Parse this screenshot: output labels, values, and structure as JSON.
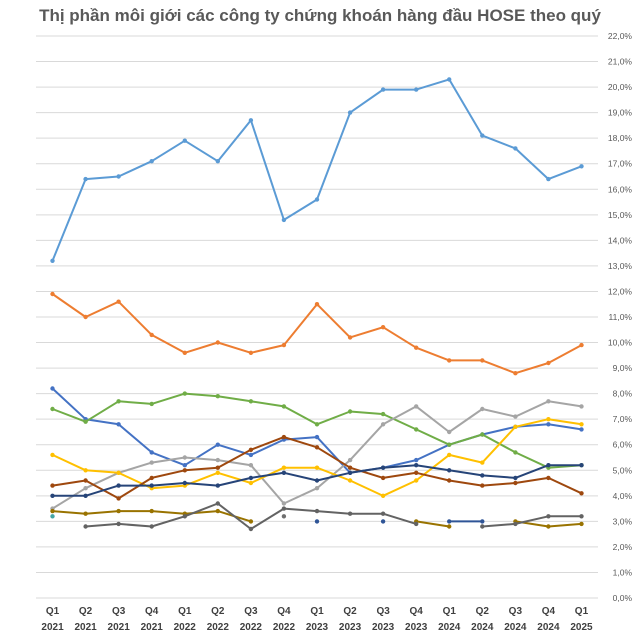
{
  "chart_data": {
    "type": "line",
    "title": "Thị phần môi giới các công ty chứng khoán hàng đầu HOSE theo quý",
    "xlabel": "",
    "ylabel": "",
    "ylim": [
      0,
      22
    ],
    "y_tick_step": 1,
    "y_tick_format": "percent_1dp_comma",
    "grid": true,
    "legend": "none",
    "categories": [
      [
        "Q1",
        "2021"
      ],
      [
        "Q2",
        "2021"
      ],
      [
        "Q3",
        "2021"
      ],
      [
        "Q4",
        "2021"
      ],
      [
        "Q1",
        "2022"
      ],
      [
        "Q2",
        "2022"
      ],
      [
        "Q3",
        "2022"
      ],
      [
        "Q4",
        "2022"
      ],
      [
        "Q1",
        "2023"
      ],
      [
        "Q2",
        "2023"
      ],
      [
        "Q3",
        "2023"
      ],
      [
        "Q4",
        "2023"
      ],
      [
        "Q1",
        "2024"
      ],
      [
        "Q2",
        "2024"
      ],
      [
        "Q3",
        "2024"
      ],
      [
        "Q4",
        "2024"
      ],
      [
        "Q1",
        "2025"
      ]
    ],
    "series": [
      {
        "color": "#5B9BD5",
        "values": [
          13.2,
          16.4,
          16.5,
          17.1,
          17.9,
          17.1,
          18.7,
          14.8,
          15.6,
          19.0,
          19.9,
          19.9,
          20.3,
          18.1,
          17.6,
          16.4,
          16.9
        ]
      },
      {
        "color": "#ED7D31",
        "values": [
          11.9,
          11.0,
          11.6,
          10.3,
          9.6,
          10.0,
          9.6,
          9.9,
          11.5,
          10.2,
          10.6,
          9.8,
          9.3,
          9.3,
          8.8,
          9.2,
          9.9
        ]
      },
      {
        "color": "#4472C4",
        "values": [
          8.2,
          7.0,
          6.8,
          5.7,
          5.2,
          6.0,
          5.6,
          6.2,
          6.3,
          4.9,
          5.1,
          5.4,
          6.0,
          6.4,
          6.7,
          6.8,
          6.6
        ]
      },
      {
        "color": "#70AD47",
        "values": [
          7.4,
          6.9,
          7.7,
          7.6,
          8.0,
          7.9,
          7.7,
          7.5,
          6.8,
          7.3,
          7.2,
          6.6,
          6.0,
          6.4,
          5.7,
          5.1,
          5.2
        ]
      },
      {
        "color": "#A5A5A5",
        "values": [
          3.5,
          4.3,
          4.9,
          5.3,
          5.5,
          5.4,
          5.2,
          3.7,
          4.3,
          5.4,
          6.8,
          7.5,
          6.5,
          7.4,
          7.1,
          7.7,
          7.5
        ]
      },
      {
        "color": "#FFC000",
        "values": [
          5.6,
          5.0,
          4.9,
          4.3,
          4.4,
          4.9,
          4.5,
          5.1,
          5.1,
          4.6,
          4.0,
          4.6,
          5.6,
          5.3,
          6.7,
          7.0,
          6.8
        ]
      },
      {
        "color": "#9E480E",
        "values": [
          4.4,
          4.6,
          3.9,
          4.7,
          5.0,
          5.1,
          5.8,
          6.3,
          5.9,
          5.1,
          4.7,
          4.9,
          4.6,
          4.4,
          4.5,
          4.7,
          4.1
        ]
      },
      {
        "color": "#264478",
        "values": [
          4.0,
          4.0,
          4.4,
          4.4,
          4.5,
          4.4,
          4.7,
          4.9,
          4.6,
          4.9,
          5.1,
          5.2,
          5.0,
          4.8,
          4.7,
          5.2,
          5.2
        ]
      },
      {
        "color": "#997300",
        "values": [
          3.4,
          3.3,
          3.4,
          3.4,
          3.3,
          3.4,
          3.0,
          null,
          null,
          null,
          null,
          3.0,
          2.8,
          null,
          3.0,
          2.8,
          2.9
        ]
      },
      {
        "color": "#636363",
        "values": [
          null,
          2.8,
          2.9,
          2.8,
          3.2,
          3.7,
          2.7,
          3.5,
          3.4,
          3.3,
          3.3,
          2.9,
          null,
          2.8,
          2.9,
          3.2,
          3.2
        ]
      },
      {
        "color": "#2F5597",
        "values": [
          null,
          null,
          null,
          null,
          null,
          null,
          null,
          null,
          3.0,
          null,
          3.0,
          null,
          3.0,
          3.0,
          null,
          null,
          null
        ]
      },
      {
        "color": "#6F6F6F",
        "values": [
          null,
          null,
          null,
          null,
          null,
          null,
          null,
          3.2,
          null,
          null,
          null,
          null,
          null,
          null,
          null,
          null,
          null
        ]
      },
      {
        "color": "#43A5A5",
        "values": [
          3.2,
          null,
          null,
          null,
          null,
          null,
          null,
          null,
          null,
          null,
          null,
          null,
          null,
          null,
          null,
          null,
          null
        ]
      }
    ]
  }
}
